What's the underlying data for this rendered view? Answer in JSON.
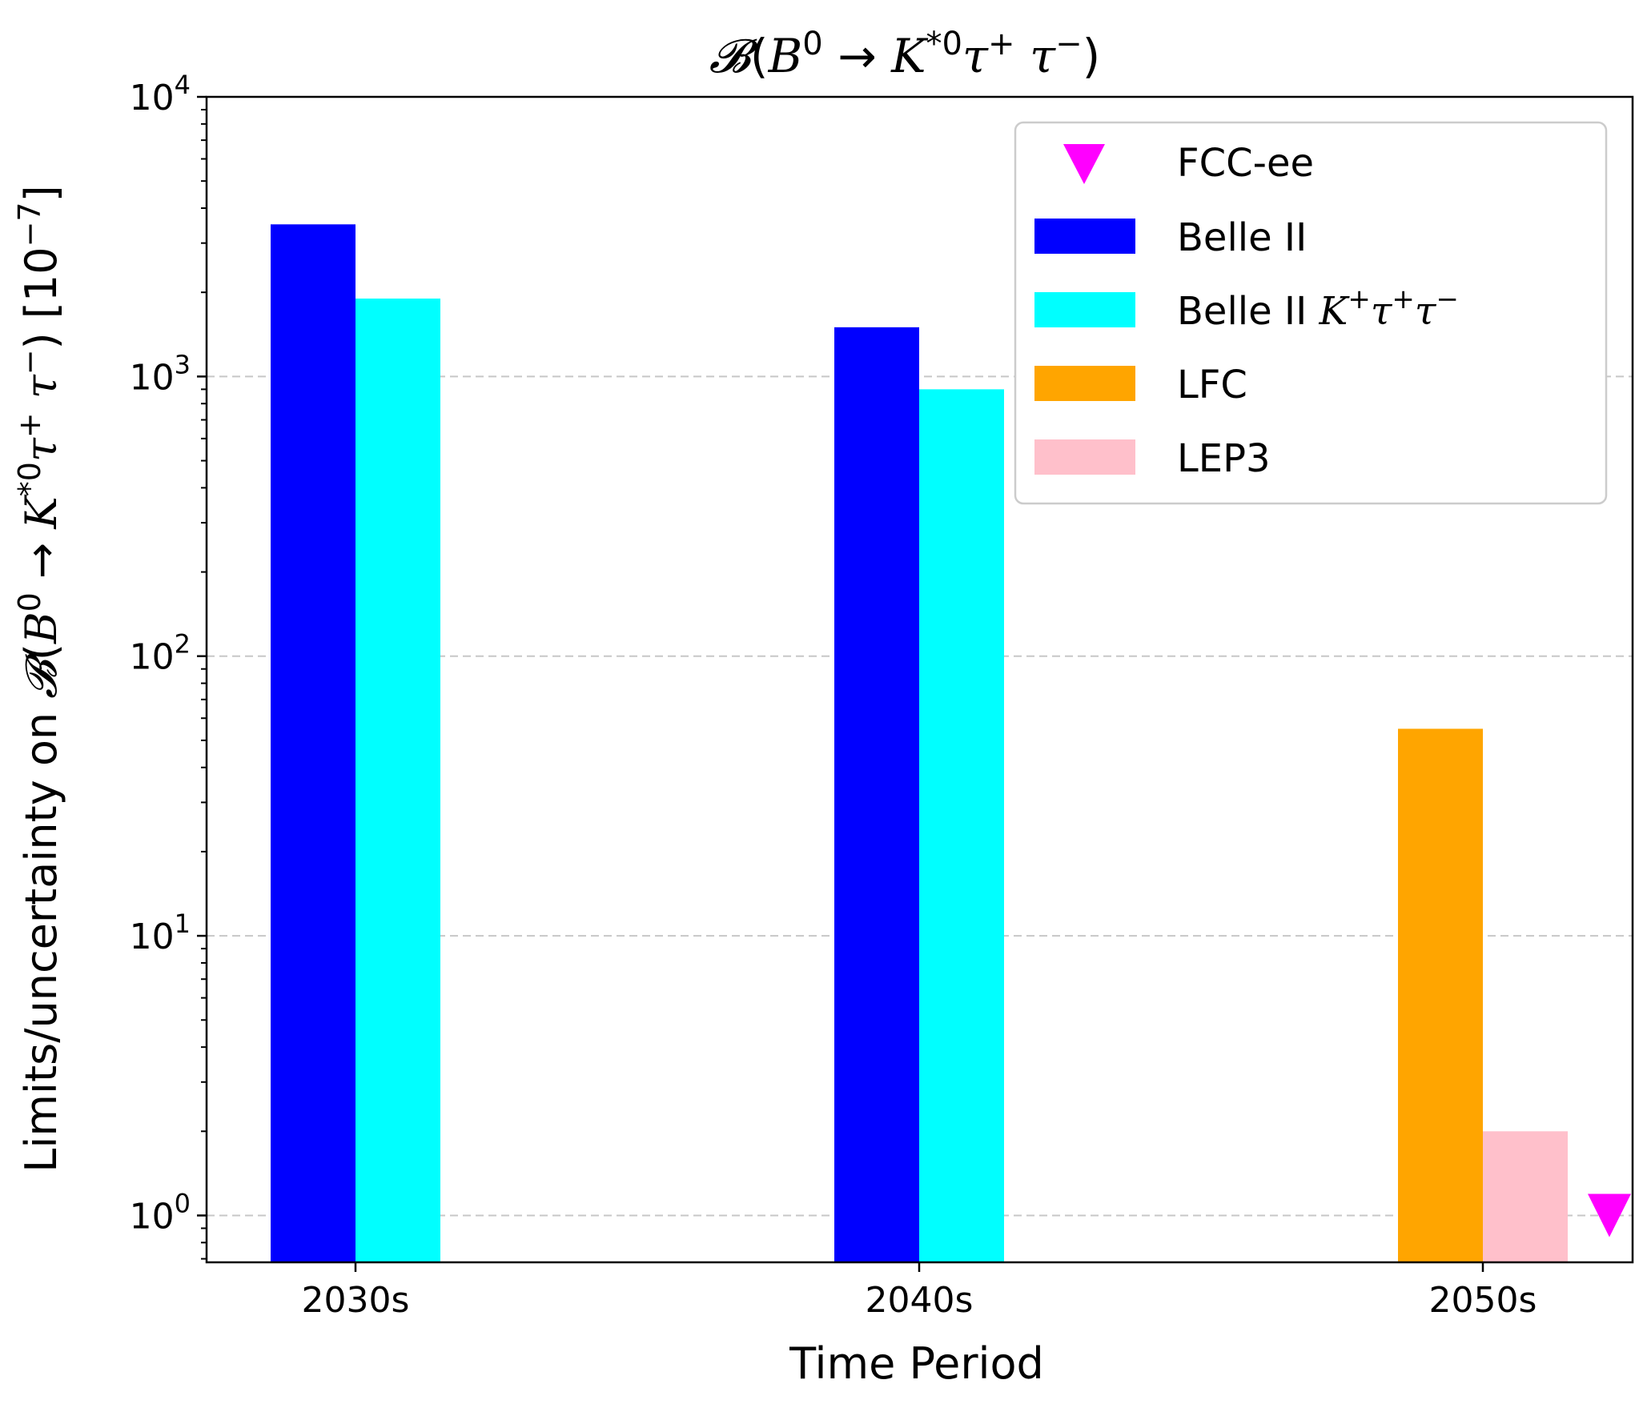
{
  "chart_data": {
    "type": "bar",
    "title": "𝓑(B⁰ → K*⁰τ⁺τ⁻)",
    "xlabel": "Time Period",
    "ylabel": "Limits/uncertainty on 𝓑(B⁰ → K*⁰τ⁺τ⁻) [10⁻⁷]",
    "y_scale": "log",
    "ylim": [
      0.68,
      10000
    ],
    "y_ticks": [
      1,
      10,
      100,
      1000,
      10000
    ],
    "y_tick_labels": [
      {
        "base": "10",
        "exp": "0"
      },
      {
        "base": "10",
        "exp": "1"
      },
      {
        "base": "10",
        "exp": "2"
      },
      {
        "base": "10",
        "exp": "3"
      },
      {
        "base": "10",
        "exp": "4"
      }
    ],
    "grid": "y-major dashed",
    "categories": [
      "2030s",
      "2040s",
      "2050s"
    ],
    "series": [
      {
        "name": "Belle II",
        "color": "#0000ff",
        "kind": "bar",
        "values": [
          3500,
          1500,
          null
        ]
      },
      {
        "name": "Belle II K⁺τ⁺τ⁻",
        "color": "#00ffff",
        "kind": "bar",
        "values": [
          1900,
          900,
          null
        ]
      },
      {
        "name": "LFC",
        "color": "#ffa500",
        "kind": "bar",
        "values": [
          null,
          null,
          55
        ]
      },
      {
        "name": "LEP3",
        "color": "#ffc0cb",
        "kind": "bar",
        "values": [
          null,
          null,
          2
        ]
      },
      {
        "name": "FCC-ee",
        "color": "#ff00ff",
        "kind": "marker",
        "marker": "triangle-down",
        "values": [
          null,
          null,
          1
        ]
      }
    ],
    "legend": {
      "placement": "top-right",
      "entries": [
        {
          "name": "FCC-ee",
          "color": "#ff00ff",
          "symbol": "triangle-down"
        },
        {
          "name": "Belle II",
          "color": "#0000ff",
          "symbol": "patch"
        },
        {
          "name": "Belle II K⁺τ⁺τ⁻",
          "color": "#00ffff",
          "symbol": "patch"
        },
        {
          "name": "LFC",
          "color": "#ffa500",
          "symbol": "patch"
        },
        {
          "name": "LEP3",
          "color": "#ffc0cb",
          "symbol": "patch"
        }
      ]
    }
  }
}
